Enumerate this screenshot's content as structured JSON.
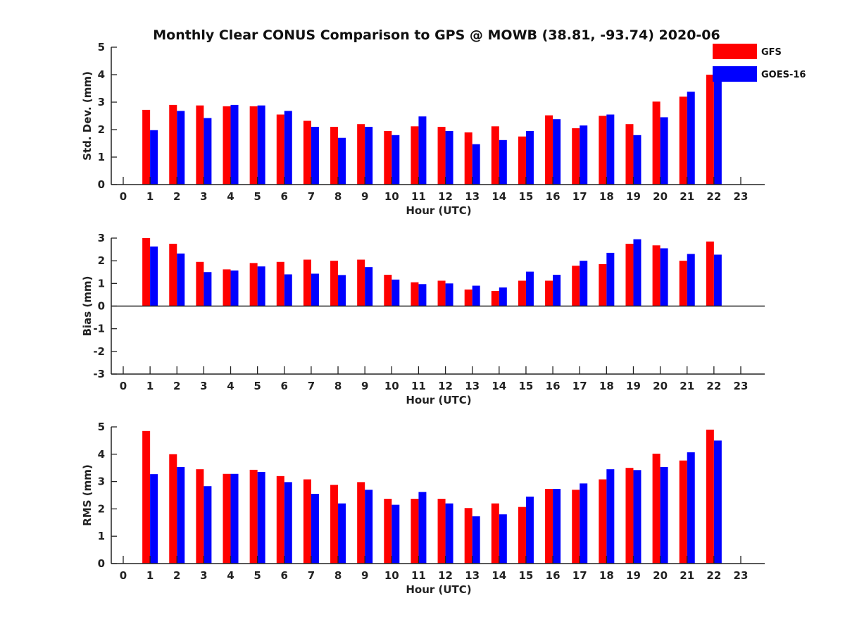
{
  "title": "Monthly Clear CONUS Comparison to GPS @ MOWB (38.81, -93.74) 2020-06",
  "legend": {
    "placement": "top-right",
    "items": [
      {
        "name": "GFS",
        "color": "#ff0000"
      },
      {
        "name": "GOES-16",
        "color": "#0000ff"
      }
    ]
  },
  "chart_data": [
    {
      "type": "bar",
      "xlabel": "Hour (UTC)",
      "ylabel": "Std. Dev. (mm)",
      "xlim": [
        0,
        23
      ],
      "ylim": [
        0,
        5
      ],
      "x_ticks": [
        "0",
        "1",
        "2",
        "3",
        "4",
        "5",
        "6",
        "7",
        "8",
        "9",
        "10",
        "11",
        "12",
        "13",
        "14",
        "15",
        "16",
        "17",
        "18",
        "19",
        "20",
        "21",
        "22",
        "23"
      ],
      "y_ticks": [
        "0",
        "1",
        "2",
        "3",
        "4",
        "5"
      ],
      "categories": [
        "1",
        "2",
        "3",
        "4",
        "5",
        "6",
        "7",
        "8",
        "9",
        "10",
        "11",
        "12",
        "13",
        "14",
        "15",
        "16",
        "17",
        "18",
        "19",
        "20",
        "21",
        "22"
      ],
      "series": [
        {
          "name": "GFS",
          "color": "#ff0000",
          "values": [
            2.72,
            2.9,
            2.88,
            2.85,
            2.85,
            2.55,
            2.32,
            2.1,
            2.2,
            1.95,
            2.12,
            2.1,
            1.9,
            2.12,
            1.75,
            2.52,
            2.05,
            2.5,
            2.2,
            3.02,
            3.2,
            4.0
          ]
        },
        {
          "name": "GOES-16",
          "color": "#0000ff",
          "values": [
            1.98,
            2.68,
            2.42,
            2.9,
            2.88,
            2.68,
            2.1,
            1.7,
            2.1,
            1.8,
            2.48,
            1.95,
            1.47,
            1.62,
            1.95,
            2.38,
            2.15,
            2.55,
            1.8,
            2.45,
            3.38,
            3.9
          ]
        }
      ],
      "grid": false
    },
    {
      "type": "bar",
      "xlabel": "Hour (UTC)",
      "ylabel": "Bias (mm)",
      "xlim": [
        0,
        23
      ],
      "ylim": [
        -3,
        3
      ],
      "x_ticks": [
        "0",
        "1",
        "2",
        "3",
        "4",
        "5",
        "6",
        "7",
        "8",
        "9",
        "10",
        "11",
        "12",
        "13",
        "14",
        "15",
        "16",
        "17",
        "18",
        "19",
        "20",
        "21",
        "22",
        "23"
      ],
      "y_ticks": [
        "-3",
        "-2",
        "-1",
        "0",
        "1",
        "2",
        "3"
      ],
      "categories": [
        "1",
        "2",
        "3",
        "4",
        "5",
        "6",
        "7",
        "8",
        "9",
        "10",
        "11",
        "12",
        "13",
        "14",
        "15",
        "16",
        "17",
        "18",
        "19",
        "20",
        "21",
        "22"
      ],
      "series": [
        {
          "name": "GFS",
          "color": "#ff0000",
          "values": [
            3.0,
            2.75,
            1.95,
            1.62,
            1.9,
            1.95,
            2.05,
            2.0,
            2.05,
            1.38,
            1.05,
            1.12,
            0.73,
            0.67,
            1.12,
            1.12,
            1.78,
            1.85,
            2.75,
            2.68,
            2.0,
            2.85
          ]
        },
        {
          "name": "GOES-16",
          "color": "#0000ff",
          "values": [
            2.63,
            2.32,
            1.5,
            1.57,
            1.75,
            1.4,
            1.43,
            1.37,
            1.72,
            1.17,
            0.97,
            1.0,
            0.9,
            0.82,
            1.52,
            1.38,
            2.0,
            2.35,
            2.95,
            2.55,
            2.3,
            2.27
          ]
        }
      ],
      "grid": false
    },
    {
      "type": "bar",
      "xlabel": "Hour (UTC)",
      "ylabel": "RMS (mm)",
      "xlim": [
        0,
        23
      ],
      "ylim": [
        0,
        5
      ],
      "x_ticks": [
        "0",
        "1",
        "2",
        "3",
        "4",
        "5",
        "6",
        "7",
        "8",
        "9",
        "10",
        "11",
        "12",
        "13",
        "14",
        "15",
        "16",
        "17",
        "18",
        "19",
        "20",
        "21",
        "22",
        "23"
      ],
      "y_ticks": [
        "0",
        "1",
        "2",
        "3",
        "4",
        "5"
      ],
      "categories": [
        "1",
        "2",
        "3",
        "4",
        "5",
        "6",
        "7",
        "8",
        "9",
        "10",
        "11",
        "12",
        "13",
        "14",
        "15",
        "16",
        "17",
        "18",
        "19",
        "20",
        "21",
        "22"
      ],
      "series": [
        {
          "name": "GFS",
          "color": "#ff0000",
          "values": [
            4.85,
            4.0,
            3.45,
            3.28,
            3.43,
            3.2,
            3.08,
            2.88,
            2.98,
            2.37,
            2.37,
            2.37,
            2.03,
            2.2,
            2.07,
            2.73,
            2.7,
            3.08,
            3.5,
            4.02,
            3.77,
            4.9
          ]
        },
        {
          "name": "GOES-16",
          "color": "#0000ff",
          "values": [
            3.27,
            3.53,
            2.83,
            3.28,
            3.35,
            2.98,
            2.55,
            2.2,
            2.7,
            2.15,
            2.62,
            2.2,
            1.73,
            1.8,
            2.45,
            2.73,
            2.93,
            3.45,
            3.42,
            3.53,
            4.07,
            4.5
          ]
        }
      ],
      "grid": false
    }
  ]
}
